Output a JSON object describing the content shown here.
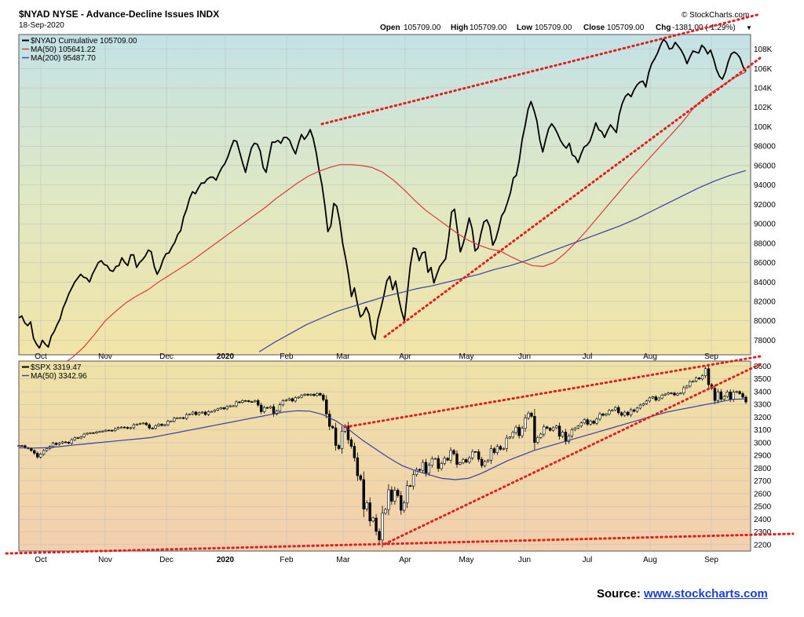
{
  "header": {
    "title": "$NYAD NYSE - Advance-Decline Issues INDX",
    "date": "18-Sep-2020",
    "open_label": "Open",
    "open": "105709.00",
    "high_label": "High",
    "high": "105709.00",
    "low_label": "Low",
    "low": "105709.00",
    "close_label": "Close",
    "close": "105709.00",
    "chg_label": "Chg",
    "chg": "-1381.00 (-1.29%)",
    "brand": "© StockCharts.com"
  },
  "source": {
    "label": "Source:",
    "link": "www.stockcharts.com"
  },
  "colors": {
    "price": "#000000",
    "ma50": "#d93b3b",
    "ma200": "#3a3fa0",
    "trend": "#e02020"
  },
  "chart_data": [
    {
      "type": "line",
      "x_ticks": [
        "Oct",
        "Nov",
        "Dec",
        "2020",
        "Feb",
        "Mar",
        "Apr",
        "May",
        "Jun",
        "Jul",
        "Aug",
        "Sep"
      ],
      "y_ticks": [
        "78000",
        "80000",
        "82000",
        "84000",
        "86000",
        "88000",
        "90000",
        "92000",
        "94000",
        "96000",
        "98000",
        "100K",
        "102K",
        "104K",
        "106K",
        "108K"
      ],
      "ylim": [
        76500,
        109500
      ],
      "series": [
        {
          "name": "$NYAD Cumulative 105709.00",
          "role": "price",
          "values": [
            80300,
            80500,
            79800,
            79500,
            79900,
            78200,
            77600,
            77200,
            78000,
            77600,
            77300,
            78400,
            78900,
            79600,
            80200,
            81300,
            82000,
            82800,
            83400,
            84000,
            84400,
            84800,
            84500,
            84400,
            84000,
            84800,
            85400,
            86000,
            86200,
            85800,
            85700,
            85200,
            85100,
            85600,
            85700,
            86500,
            86000,
            85700,
            86800,
            86800,
            85500,
            86000,
            86300,
            86700,
            87300,
            87100,
            85600,
            84800,
            85400,
            86300,
            86900,
            87000,
            87600,
            88100,
            88900,
            89300,
            90700,
            91500,
            92600,
            93300,
            93100,
            93700,
            94200,
            94200,
            94600,
            94800,
            94800,
            94500,
            95200,
            95800,
            96200,
            96900,
            97800,
            98600,
            98500,
            97400,
            96300,
            95300,
            96600,
            97800,
            98300,
            98200,
            97500,
            95800,
            95300,
            96900,
            98400,
            98400,
            98600,
            98300,
            98900,
            98900,
            98600,
            97800,
            97200,
            98300,
            99200,
            98700,
            99100,
            99700,
            98800,
            97400,
            95500,
            94000,
            91800,
            89200,
            89800,
            92100,
            91800,
            90300,
            88000,
            86500,
            84700,
            82500,
            83400,
            81800,
            80400,
            80700,
            81400,
            80700,
            78700,
            78100,
            80200,
            81300,
            82600,
            84100,
            84600,
            83200,
            84100,
            82400,
            81000,
            80000,
            82900,
            85700,
            87500,
            87400,
            86200,
            87000,
            87100,
            85000,
            85500,
            83900,
            84800,
            85600,
            86000,
            86400,
            88500,
            91200,
            91500,
            89300,
            87100,
            88000,
            89200,
            90600,
            89500,
            87200,
            87500,
            89000,
            90200,
            90400,
            89700,
            87800,
            88400,
            89500,
            90800,
            91300,
            92200,
            93200,
            94700,
            95000,
            96500,
            98700,
            100100,
            101800,
            102600,
            101700,
            100600,
            98600,
            97400,
            98700,
            99800,
            100300,
            99900,
            99300,
            98600,
            98100,
            97800,
            98300,
            97100,
            96900,
            96300,
            97200,
            97900,
            98100,
            98500,
            99400,
            100400,
            99700,
            99500,
            98900,
            99600,
            100200,
            99800,
            99400,
            101300,
            102400,
            103100,
            103400,
            103100,
            103800,
            104300,
            104600,
            104700,
            104100,
            105600,
            106500,
            107000,
            107600,
            108400,
            109000,
            108700,
            108000,
            108100,
            108700,
            108300,
            107900,
            107300,
            106500,
            107200,
            107800,
            107700,
            107600,
            108400,
            108100,
            107500,
            107900,
            107000,
            105900,
            105200,
            104900,
            105600,
            106700,
            107500,
            107700,
            107500,
            107100,
            106200,
            105709
          ]
        },
        {
          "name": "MA(50) 105641.22",
          "role": "ma50",
          "values": [
            75000,
            75500,
            76300,
            77300,
            78600,
            80000,
            81000,
            81900,
            82600,
            83200,
            84000,
            84700,
            85400,
            86100,
            86900,
            87700,
            88500,
            89300,
            90100,
            90900,
            91700,
            92600,
            93400,
            94200,
            94900,
            95400,
            95800,
            96100,
            96100,
            96000,
            95800,
            95300,
            94500,
            93500,
            92400,
            91400,
            90600,
            89800,
            89000,
            88300,
            87800,
            87400,
            87200,
            86600,
            86100,
            85700,
            85600,
            86000,
            86900,
            88000,
            89200,
            90500,
            91800,
            93100,
            94400,
            95600,
            96800,
            98000,
            99200,
            100400,
            101800,
            102900,
            103700,
            104400,
            105100,
            105641
          ]
        },
        {
          "name": "MA(200) 95487.70",
          "role": "ma200",
          "values": [
            76800,
            77800,
            78700,
            79600,
            80300,
            81000,
            81500,
            82000,
            82500,
            82900,
            83300,
            83600,
            84000,
            84400,
            84800,
            85300,
            85700,
            86200,
            86800,
            87400,
            88000,
            88600,
            89200,
            89800,
            90500,
            91300,
            92100,
            92900,
            93700,
            94400,
            95000,
            95488
          ]
        }
      ],
      "trendlines_note": ""
    },
    {
      "type": "candlestick",
      "x_ticks": [
        "Oct",
        "Nov",
        "Dec",
        "2020",
        "Feb",
        "Mar",
        "Apr",
        "May",
        "Jun",
        "Jul",
        "Aug",
        "Sep"
      ],
      "y_ticks": [
        "2200",
        "2300",
        "2400",
        "2500",
        "2600",
        "2700",
        "2800",
        "2900",
        "3000",
        "3100",
        "3200",
        "3300",
        "3400",
        "3500",
        "3600"
      ],
      "ylim": [
        2150,
        3640
      ],
      "series": [
        {
          "name": "$SPX 3319.47",
          "role": "price",
          "values": [
            2977,
            2976,
            2961,
            2954,
            2938,
            2917,
            2887,
            2910,
            2938,
            2953,
            2970,
            2996,
            2986,
            2996,
            3006,
            3004,
            2996,
            3023,
            3039,
            3036,
            3047,
            3067,
            3074,
            3078,
            3077,
            3085,
            3087,
            3091,
            3098,
            3097,
            3094,
            3110,
            3119,
            3122,
            3120,
            3113,
            3117,
            3141,
            3145,
            3150,
            3154,
            3141,
            3115,
            3113,
            3133,
            3145,
            3135,
            3141,
            3168,
            3169,
            3192,
            3195,
            3196,
            3191,
            3221,
            3224,
            3240,
            3221,
            3235,
            3240,
            3221,
            3244,
            3245,
            3254,
            3265,
            3274,
            3265,
            3283,
            3289,
            3289,
            3320,
            3316,
            3330,
            3329,
            3322,
            3321,
            3330,
            3295,
            3243,
            3276,
            3273,
            3283,
            3225,
            3248,
            3297,
            3328,
            3334,
            3345,
            3327,
            3352,
            3357,
            3373,
            3380,
            3373,
            3380,
            3370,
            3386,
            3373,
            3337,
            3225,
            3128,
            3116,
            2978,
            2954,
            3090,
            3130,
            3023,
            2972,
            2882,
            2741,
            2711,
            2480,
            2529,
            2386,
            2409,
            2305,
            2237,
            2447,
            2476,
            2630,
            2541,
            2627,
            2585,
            2470,
            2527,
            2663,
            2660,
            2750,
            2790,
            2783,
            2846,
            2761,
            2823,
            2874,
            2876,
            2797,
            2837,
            2878,
            2863,
            2939,
            2913,
            2830,
            2843,
            2868,
            2848,
            2881,
            2930,
            2929,
            2870,
            2820,
            2852,
            2863,
            2953,
            2922,
            2971,
            2948,
            2955,
            3036,
            3044,
            3080,
            3122,
            3055,
            3112,
            3194,
            3232,
            3207,
            3002,
            3041,
            3067,
            3124,
            3113,
            3097,
            3117,
            3131,
            3050,
            3083,
            3009,
            3053,
            3100,
            3115,
            3130,
            3155,
            3180,
            3145,
            3169,
            3152,
            3185,
            3226,
            3215,
            3224,
            3252,
            3257,
            3276,
            3235,
            3215,
            3239,
            3218,
            3258,
            3246,
            3271,
            3295,
            3306,
            3327,
            3351,
            3360,
            3334,
            3350,
            3373,
            3381,
            3390,
            3389,
            3374,
            3386,
            3389,
            3431,
            3444,
            3478,
            3484,
            3508,
            3500,
            3526,
            3580,
            3455,
            3426,
            3331,
            3399,
            3340,
            3363,
            3398,
            3339,
            3395,
            3401,
            3385,
            3357,
            3319
          ]
        },
        {
          "name": "MA(50) 3342.96",
          "role": "ma50",
          "values": [
            2960,
            2958,
            2960,
            2968,
            2980,
            2990,
            3000,
            3010,
            3020,
            3030,
            3040,
            3060,
            3080,
            3100,
            3120,
            3140,
            3160,
            3180,
            3200,
            3220,
            3240,
            3250,
            3248,
            3220,
            3170,
            3100,
            3020,
            2950,
            2880,
            2820,
            2780,
            2750,
            2720,
            2710,
            2720,
            2760,
            2810,
            2860,
            2900,
            2940,
            2970,
            3000,
            3030,
            3060,
            3090,
            3120,
            3150,
            3180,
            3210,
            3240,
            3260,
            3280,
            3300,
            3320,
            3340,
            3343
          ]
        }
      ]
    }
  ]
}
